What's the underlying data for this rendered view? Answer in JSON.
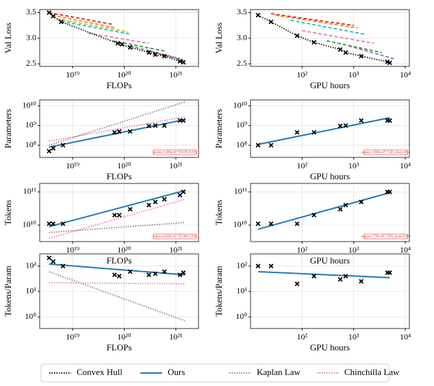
{
  "chart_data": [
    {
      "type": "scatter",
      "xlabel": "FLOPs",
      "ylabel": "Val Loss",
      "xlog": true,
      "ylog": false,
      "grid": true,
      "xlim": [
        2.3e+18,
        2.75e+21
      ],
      "ylim": [
        2.45,
        3.56
      ],
      "xticks": [
        {
          "value": 1e+19,
          "label": "10¹⁹"
        },
        {
          "value": 1e+20,
          "label": "10²⁰"
        },
        {
          "value": 1e+21,
          "label": "10²¹"
        }
      ],
      "yticks": [
        2.5,
        {
          "value": 3,
          "label": "3.0"
        },
        3.5
      ],
      "series": [
        {
          "color": "#d62728",
          "style": "dashed",
          "x": [
            3.5e+18,
            6e+19
          ],
          "values": [
            3.5,
            3.27
          ]
        },
        {
          "color": "#ff7f0e",
          "style": "dashed",
          "x": [
            4e+18,
            7e+19
          ],
          "values": [
            3.45,
            3.2
          ]
        },
        {
          "color": "#bcbd22",
          "style": "dashed",
          "x": [
            5e+18,
            1.2e+20
          ],
          "values": [
            3.38,
            3.12
          ]
        },
        {
          "color": "#17becf",
          "style": "dashed",
          "x": [
            6e+18,
            1.3e+20
          ],
          "values": [
            3.33,
            3.08
          ]
        },
        {
          "color": "#e377c2",
          "style": "dashed",
          "x": [
            2e+19,
            3e+20
          ],
          "values": [
            3.1,
            2.9
          ]
        },
        {
          "color": "#2ca02c",
          "style": "dashed",
          "x": [
            6e+19,
            6e+20
          ],
          "values": [
            2.95,
            2.75
          ]
        },
        {
          "color": "#9467bd",
          "style": "dashed",
          "x": [
            1.3e+20,
            1.2e+21
          ],
          "values": [
            2.85,
            2.6
          ]
        },
        {
          "color": "#8c564b",
          "style": "dashed",
          "x": [
            3e+20,
            1.4e+21
          ],
          "values": [
            2.75,
            2.57
          ]
        },
        {
          "name": "Convex Hull",
          "color": "#000000",
          "style": "dotted",
          "x": [
            3.5e+18,
            4.2e+18,
            6e+18,
            7.5e+19,
            9e+19,
            1.3e+20,
            3e+20,
            4e+20,
            6e+20,
            1.2e+21,
            1.4e+21
          ],
          "values": [
            3.5,
            3.43,
            3.32,
            2.9,
            2.88,
            2.82,
            2.72,
            2.68,
            2.65,
            2.55,
            2.53
          ]
        }
      ],
      "points": {
        "x": [
          3.5e+18,
          4.2e+18,
          6e+18,
          7.5e+19,
          9e+19,
          1.3e+20,
          3e+20,
          4e+20,
          6e+20,
          1.2e+21,
          1.4e+21
        ],
        "values": [
          3.5,
          3.43,
          3.32,
          2.9,
          2.88,
          2.82,
          2.72,
          2.68,
          2.65,
          2.55,
          2.53
        ]
      }
    },
    {
      "type": "scatter",
      "xlabel": "GPU hours",
      "ylabel": "Val Loss",
      "xlog": true,
      "ylog": false,
      "grid": true,
      "xlim": [
        10,
        12000
      ],
      "ylim": [
        2.45,
        3.56
      ],
      "xticks": [
        {
          "value": 100,
          "label": "10²"
        },
        {
          "value": 1000,
          "label": "10³"
        },
        {
          "value": 10000,
          "label": "10⁴"
        }
      ],
      "yticks": [
        2.5,
        {
          "value": 3,
          "label": "3.0"
        },
        3.5
      ],
      "series": [
        {
          "color": "#d62728",
          "style": "dashed",
          "x": [
            25,
            1000
          ],
          "values": [
            3.48,
            3.25
          ]
        },
        {
          "color": "#ff7f0e",
          "style": "dashed",
          "x": [
            30,
            1200
          ],
          "values": [
            3.45,
            3.2
          ]
        },
        {
          "color": "#17becf",
          "style": "dashed",
          "x": [
            60,
            1600
          ],
          "values": [
            3.35,
            3.08
          ]
        },
        {
          "color": "#e377c2",
          "style": "dashed",
          "x": [
            100,
            2500
          ],
          "values": [
            3.15,
            2.9
          ]
        },
        {
          "color": "#2ca02c",
          "style": "dashed",
          "x": [
            300,
            3500
          ],
          "values": [
            2.95,
            2.72
          ]
        },
        {
          "color": "#9467bd",
          "style": "dashed",
          "x": [
            800,
            6000
          ],
          "values": [
            2.85,
            2.6
          ]
        },
        {
          "name": "Convex Hull",
          "color": "#000000",
          "style": "dotted",
          "x": [
            14,
            25,
            80,
            170,
            550,
            700,
            1400,
            4500,
            5000
          ],
          "values": [
            3.45,
            3.32,
            3.05,
            2.92,
            2.78,
            2.72,
            2.65,
            2.54,
            2.52
          ]
        }
      ],
      "points": {
        "x": [
          14,
          25,
          80,
          170,
          550,
          700,
          1400,
          4500,
          5000
        ],
        "values": [
          3.45,
          3.32,
          3.05,
          2.92,
          2.78,
          2.72,
          2.65,
          2.54,
          2.52
        ]
      }
    },
    {
      "type": "scatter",
      "xlabel": "FLOPs",
      "ylabel": "Parameters",
      "xlog": true,
      "ylog": true,
      "grid": true,
      "xlim": [
        2.3e+18,
        2.75e+21
      ],
      "ylim": [
        24000000.0,
        20000000000.0
      ],
      "xticks": [
        {
          "value": 1e+19,
          "label": "10¹⁹"
        },
        {
          "value": 1e+20,
          "label": "10²⁰"
        },
        {
          "value": 1e+21,
          "label": "10²¹"
        }
      ],
      "yticks": [
        {
          "value": 100000000.0,
          "label": "10⁸"
        },
        {
          "value": 1000000000.0,
          "label": "10⁹"
        },
        {
          "value": 10000000000.0,
          "label": "10¹⁰"
        }
      ],
      "annotation": "params=1.409e-04 * FLOPs^0.597",
      "series": [
        {
          "name": "Kaplan Law",
          "color": "#808080",
          "style": "dotted",
          "x": [
            3.5e+18,
            1.5e+21
          ],
          "values": [
            100000000.0,
            16000000000.0
          ]
        },
        {
          "name": "Chinchilla Law",
          "color": "#e377c2",
          "style": "dotted",
          "x": [
            3.5e+18,
            1.5e+21
          ],
          "values": [
            160000000.0,
            2800000000.0
          ]
        },
        {
          "name": "Ours",
          "color": "#1f77b4",
          "style": "solid",
          "x": [
            3.5e+18,
            1.5e+21
          ],
          "values": [
            80000000.0,
            2000000000.0
          ]
        }
      ],
      "points": {
        "x": [
          3.5e+18,
          4.2e+18,
          6.5e+18,
          6.5e+19,
          8e+19,
          1.3e+20,
          3e+20,
          4e+20,
          6e+20,
          1.2e+21,
          1.4e+21
        ],
        "values": [
          50000000.0,
          70000000.0,
          100000000.0,
          450000000.0,
          500000000.0,
          500000000.0,
          950000000.0,
          1000000000.0,
          1000000000.0,
          1800000000.0,
          1800000000.0
        ]
      }
    },
    {
      "type": "scatter",
      "xlabel": "GPU hours",
      "ylabel": "Parameters",
      "xlog": true,
      "ylog": true,
      "grid": true,
      "xlim": [
        10,
        12000
      ],
      "ylim": [
        24000000.0,
        20000000000.0
      ],
      "xticks": [
        {
          "value": 100,
          "label": "10²"
        },
        {
          "value": 1000,
          "label": "10³"
        },
        {
          "value": 10000,
          "label": "10⁴"
        }
      ],
      "yticks": [
        {
          "value": 100000000.0,
          "label": "10⁸"
        },
        {
          "value": 1000000000.0,
          "label": "10⁹"
        },
        {
          "value": 10000000000.0,
          "label": "10¹⁰"
        }
      ],
      "annotation": "params=1.906e+07 * GPU_hours^0.54",
      "series": [
        {
          "name": "Ours",
          "color": "#1f77b4",
          "style": "solid",
          "x": [
            14,
            5000
          ],
          "values": [
            110000000.0,
            2500000000.0
          ]
        }
      ],
      "points": {
        "x": [
          14,
          25,
          80,
          170,
          550,
          700,
          1400,
          4500,
          5000
        ],
        "values": [
          100000000.0,
          100000000.0,
          450000000.0,
          450000000.0,
          950000000.0,
          1000000000.0,
          1800000000.0,
          1800000000.0,
          1800000000.0
        ]
      }
    },
    {
      "type": "scatter",
      "xlabel": "FLOPs",
      "ylabel": "Tokens",
      "xlog": true,
      "ylog": true,
      "grid": true,
      "xlim": [
        2.3e+18,
        2.75e+21
      ],
      "ylim": [
        3200000000.0,
        180000000000.0
      ],
      "xticks": [
        {
          "value": 1e+19,
          "label": "10¹⁹"
        },
        {
          "value": 1e+20,
          "label": "10²⁰"
        },
        {
          "value": 1e+21,
          "label": "10²¹"
        }
      ],
      "yticks": [
        {
          "value": 10000000000.0,
          "label": "10¹⁰"
        },
        {
          "value": 100000000000.0,
          "label": "10¹¹"
        }
      ],
      "annotation": "tokens=4.456e-03 * FLOPs^0.593",
      "series": [
        {
          "name": "Kaplan Law",
          "color": "#808080",
          "style": "dotted",
          "x": [
            3.5e+18,
            1.5e+21
          ],
          "values": [
            6000000000.0,
            12000000000.0
          ]
        },
        {
          "name": "Chinchilla Law",
          "color": "#e377c2",
          "style": "dotted",
          "x": [
            3.5e+18,
            1.5e+21
          ],
          "values": [
            4000000000.0,
            60000000000.0
          ]
        },
        {
          "name": "Ours",
          "color": "#1f77b4",
          "style": "solid",
          "x": [
            3.5e+18,
            1.5e+21
          ],
          "values": [
            9000000000.0,
            110000000000.0
          ]
        }
      ],
      "points": {
        "x": [
          3.5e+18,
          4.2e+18,
          6.5e+18,
          6.5e+19,
          8e+19,
          1.3e+20,
          3e+20,
          4e+20,
          6e+20,
          1.2e+21,
          1.4e+21
        ],
        "values": [
          11000000000.0,
          11000000000.0,
          11000000000.0,
          20000000000.0,
          20000000000.0,
          30000000000.0,
          40000000000.0,
          50000000000.0,
          60000000000.0,
          80000000000.0,
          100000000000.0
        ]
      }
    },
    {
      "type": "scatter",
      "xlabel": "GPU hours",
      "ylabel": "Tokens",
      "xlog": true,
      "ylog": true,
      "grid": true,
      "xlim": [
        10,
        12000
      ],
      "ylim": [
        3200000000.0,
        180000000000.0
      ],
      "xticks": [
        {
          "value": 100,
          "label": "10²"
        },
        {
          "value": 1000,
          "label": "10³"
        },
        {
          "value": 10000,
          "label": "10⁴"
        }
      ],
      "yticks": [
        {
          "value": 10000000000.0,
          "label": "10¹⁰"
        },
        {
          "value": 100000000000.0,
          "label": "10¹¹"
        }
      ],
      "annotation": "tokens=1.770e+09 * GPU_hours^0.459",
      "series": [
        {
          "name": "Ours",
          "color": "#1f77b4",
          "style": "solid",
          "x": [
            14,
            5000
          ],
          "values": [
            7500000000.0,
            95000000000.0
          ]
        }
      ],
      "points": {
        "x": [
          14,
          25,
          80,
          170,
          550,
          700,
          1400,
          4500,
          5000
        ],
        "values": [
          11000000000.0,
          11000000000.0,
          11000000000.0,
          20000000000.0,
          30000000000.0,
          40000000000.0,
          50000000000.0,
          100000000000.0,
          100000000000.0
        ]
      }
    },
    {
      "type": "scatter",
      "xlabel": "FLOPs",
      "ylabel": "Tokens/Param",
      "xlog": true,
      "ylog": true,
      "grid": true,
      "xlim": [
        2.3e+18,
        2.75e+21
      ],
      "ylim": [
        0.35,
        300
      ],
      "xticks": [
        {
          "value": 1e+19,
          "label": "10¹⁹"
        },
        {
          "value": 1e+20,
          "label": "10²⁰"
        },
        {
          "value": 1e+21,
          "label": "10²¹"
        }
      ],
      "yticks": [
        {
          "value": 1,
          "label": "10⁰"
        },
        {
          "value": 10,
          "label": "10¹"
        },
        {
          "value": 100,
          "label": "10²"
        }
      ],
      "series": [
        {
          "name": "Kaplan Law",
          "color": "#808080",
          "style": "dotted",
          "x": [
            3.5e+18,
            1.5e+21
          ],
          "values": [
            60,
            0.7
          ]
        },
        {
          "name": "Chinchilla Law",
          "color": "#e377c2",
          "style": "dotted",
          "x": [
            3.5e+18,
            1.5e+21
          ],
          "values": [
            22,
            20
          ]
        },
        {
          "name": "Ours",
          "color": "#1f77b4",
          "style": "solid",
          "x": [
            3.5e+18,
            1.5e+21
          ],
          "values": [
            120,
            45
          ]
        }
      ],
      "points": {
        "x": [
          3.5e+18,
          4.2e+18,
          6.5e+18,
          6.5e+19,
          8e+19,
          1.3e+20,
          3e+20,
          4e+20,
          6e+20,
          1.2e+21,
          1.4e+21
        ],
        "values": [
          210,
          150,
          100,
          45,
          40,
          60,
          45,
          50,
          60,
          45,
          55
        ]
      }
    },
    {
      "type": "scatter",
      "xlabel": "GPU hours",
      "ylabel": "Tokens/Param",
      "xlog": true,
      "ylog": true,
      "grid": true,
      "xlim": [
        10,
        12000
      ],
      "ylim": [
        0.35,
        300
      ],
      "xticks": [
        {
          "value": 100,
          "label": "10²"
        },
        {
          "value": 1000,
          "label": "10³"
        },
        {
          "value": 10000,
          "label": "10⁴"
        }
      ],
      "yticks": [
        {
          "value": 1,
          "label": "10⁰"
        },
        {
          "value": 10,
          "label": "10¹"
        },
        {
          "value": 100,
          "label": "10²"
        }
      ],
      "series": [
        {
          "name": "Ours",
          "color": "#1f77b4",
          "style": "solid",
          "x": [
            14,
            5000
          ],
          "values": [
            60,
            35
          ]
        }
      ],
      "points": {
        "x": [
          14,
          25,
          80,
          170,
          550,
          700,
          1400,
          4500,
          5000
        ],
        "values": [
          100,
          100,
          20,
          40,
          30,
          40,
          25,
          55,
          55
        ]
      }
    }
  ],
  "legend": [
    {
      "name": "Convex Hull",
      "color": "#000000",
      "style": "dotted"
    },
    {
      "name": "Ours",
      "color": "#1f77b4",
      "style": "solid"
    },
    {
      "name": "Kaplan Law",
      "color": "#808080",
      "style": "dotted"
    },
    {
      "name": "Chinchilla Law",
      "color": "#e377c2",
      "style": "dotted"
    }
  ]
}
